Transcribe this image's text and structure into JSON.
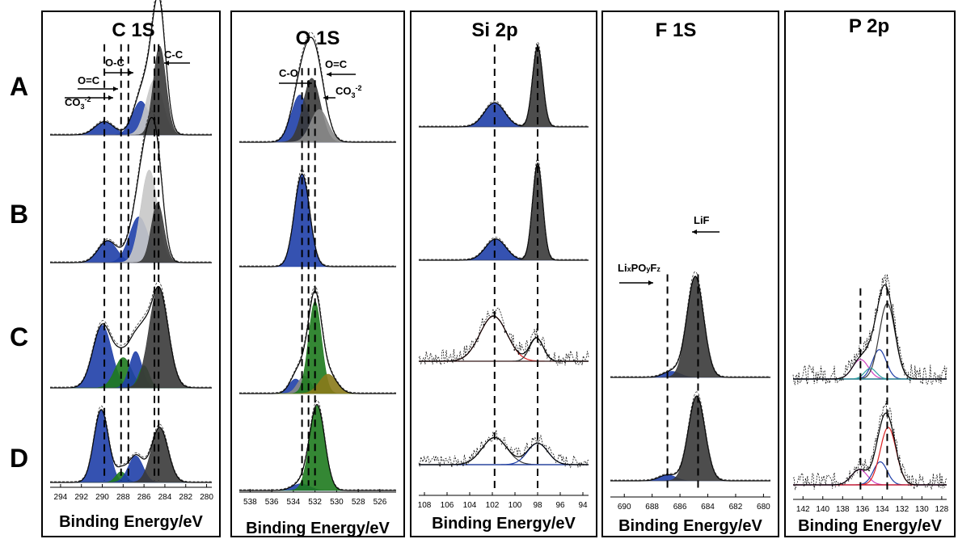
{
  "colors": {
    "blue": "#1f3fa8",
    "green": "#1e7a1e",
    "olive": "#8a7a1a",
    "gray_dark": "#3a3a3a",
    "gray_mid": "#8a8a8a",
    "gray_light": "#c8c8c8"
  },
  "row_labels": [
    "A",
    "B",
    "C",
    "D"
  ],
  "chart_data": [
    {
      "type": "line",
      "title": "C 1S",
      "xlabel": "Binding Energy/eV",
      "ylabel": "",
      "xlim": [
        295,
        279.5
      ],
      "x_ticks": [
        294,
        292,
        290,
        288,
        286,
        284,
        282,
        280
      ],
      "annotations": [
        "CO3-2",
        "O=C",
        "O-C",
        "C-C"
      ],
      "dashed_lines": [
        289.8,
        288.2,
        287.5,
        285.0,
        284.6
      ],
      "rows": {
        "A": {
          "peaks": [
            {
              "center": 289.8,
              "height": 0.15,
              "width": 0.9,
              "color": "blue"
            },
            {
              "center": 286.3,
              "height": 0.38,
              "width": 0.8,
              "color": "blue"
            },
            {
              "center": 285.0,
              "height": 0.62,
              "width": 0.8,
              "color": "gray_light"
            },
            {
              "center": 284.5,
              "height": 1.0,
              "width": 0.6,
              "color": "gray_dark"
            }
          ]
        },
        "B": {
          "peaks": [
            {
              "center": 289.5,
              "height": 0.2,
              "width": 0.9,
              "color": "blue"
            },
            {
              "center": 286.5,
              "height": 0.42,
              "width": 0.9,
              "color": "blue"
            },
            {
              "center": 285.5,
              "height": 0.85,
              "width": 0.8,
              "color": "gray_light"
            },
            {
              "center": 284.7,
              "height": 0.55,
              "width": 0.6,
              "color": "gray_dark"
            }
          ]
        },
        "C": {
          "peaks": [
            {
              "center": 290.0,
              "height": 0.62,
              "width": 0.9,
              "color": "blue"
            },
            {
              "center": 288.0,
              "height": 0.3,
              "width": 0.8,
              "color": "green"
            },
            {
              "center": 286.8,
              "height": 0.36,
              "width": 0.6,
              "color": "blue"
            },
            {
              "center": 286.0,
              "height": 0.22,
              "width": 0.5,
              "color": "green"
            },
            {
              "center": 284.6,
              "height": 1.0,
              "width": 0.9,
              "color": "gray_dark"
            }
          ]
        },
        "D": {
          "peaks": [
            {
              "center": 290.1,
              "height": 0.82,
              "width": 0.7,
              "color": "blue"
            },
            {
              "center": 288.2,
              "height": 0.12,
              "width": 0.5,
              "color": "green"
            },
            {
              "center": 286.8,
              "height": 0.3,
              "width": 0.7,
              "color": "blue"
            },
            {
              "center": 284.5,
              "height": 0.62,
              "width": 0.8,
              "color": "gray_dark"
            }
          ]
        }
      }
    },
    {
      "type": "line",
      "title": "O 1S",
      "xlabel": "Binding Energy/eV",
      "ylabel": "",
      "xlim": [
        539,
        524.5
      ],
      "x_ticks": [
        538,
        536,
        534,
        532,
        530,
        528,
        526
      ],
      "annotations": [
        "C-O",
        "O=C",
        "CO3-2"
      ],
      "dashed_lines": [
        533.2,
        532.6,
        532.0
      ],
      "rows": {
        "A": {
          "peaks": [
            {
              "center": 533.4,
              "height": 0.65,
              "width": 0.8,
              "color": "blue"
            },
            {
              "center": 532.3,
              "height": 0.88,
              "width": 0.8,
              "color": "gray_dark"
            },
            {
              "center": 531.6,
              "height": 0.45,
              "width": 0.8,
              "color": "gray_mid"
            }
          ]
        },
        "B": {
          "peaks": [
            {
              "center": 533.2,
              "height": 1.0,
              "width": 0.7,
              "color": "blue"
            }
          ]
        },
        "C": {
          "peaks": [
            {
              "center": 533.8,
              "height": 0.15,
              "width": 0.6,
              "color": "blue"
            },
            {
              "center": 533.0,
              "height": 0.18,
              "width": 0.6,
              "color": "gray_mid"
            },
            {
              "center": 532.0,
              "height": 0.95,
              "width": 0.6,
              "color": "green"
            },
            {
              "center": 530.8,
              "height": 0.2,
              "width": 0.8,
              "color": "olive"
            }
          ]
        },
        "D": {
          "peaks": [
            {
              "center": 533.3,
              "height": 0.08,
              "width": 0.8,
              "color": "blue"
            },
            {
              "center": 531.8,
              "height": 1.0,
              "width": 0.7,
              "color": "green"
            }
          ]
        }
      }
    },
    {
      "type": "line",
      "title": "Si 2p",
      "xlabel": "Binding Energy/eV",
      "ylabel": "",
      "xlim": [
        108.5,
        93.5
      ],
      "x_ticks": [
        108,
        106,
        104,
        102,
        100,
        98,
        96,
        94
      ],
      "annotations": [],
      "dashed_lines": [
        101.8,
        98.0
      ],
      "rows": {
        "A": {
          "peaks": [
            {
              "center": 101.8,
              "height": 0.3,
              "width": 0.9,
              "color": "blue"
            },
            {
              "center": 98.0,
              "height": 1.0,
              "width": 0.45,
              "color": "gray_dark"
            }
          ]
        },
        "B": {
          "peaks": [
            {
              "center": 101.7,
              "height": 0.22,
              "width": 0.9,
              "color": "blue"
            },
            {
              "center": 98.0,
              "height": 1.0,
              "width": 0.45,
              "color": "gray_dark"
            }
          ]
        },
        "C": {
          "noisy": true,
          "peaks": [
            {
              "center": 101.9,
              "height": 0.62,
              "width": 1.2,
              "color": "red"
            },
            {
              "center": 98.1,
              "height": 0.32,
              "width": 0.6,
              "color": "gray_dark"
            }
          ]
        },
        "D": {
          "noisy": true,
          "peaks": [
            {
              "center": 101.8,
              "height": 0.48,
              "width": 1.1,
              "color": "gray_dark"
            },
            {
              "center": 98.0,
              "height": 0.38,
              "width": 0.9,
              "color": "blue"
            }
          ]
        }
      }
    },
    {
      "type": "line",
      "title": "F 1S",
      "xlabel": "Binding Energy/eV",
      "ylabel": "",
      "xlim": [
        691,
        679.5
      ],
      "x_ticks": [
        690,
        688,
        686,
        684,
        682,
        680
      ],
      "annotations": [
        "LiF",
        "LixPOyFz"
      ],
      "dashed_lines": [
        686.9,
        684.7
      ],
      "rows": {
        "A": {
          "peaks": []
        },
        "B": {
          "peaks": []
        },
        "C": {
          "peaks": [
            {
              "center": 686.6,
              "height": 0.06,
              "width": 0.6,
              "color": "blue"
            },
            {
              "center": 684.9,
              "height": 1.0,
              "width": 0.6,
              "color": "gray_dark"
            }
          ]
        },
        "D": {
          "peaks": [
            {
              "center": 686.9,
              "height": 0.07,
              "width": 0.6,
              "color": "blue"
            },
            {
              "center": 684.8,
              "height": 1.0,
              "width": 0.6,
              "color": "gray_dark"
            }
          ]
        }
      }
    },
    {
      "type": "line",
      "title": "P 2p",
      "xlabel": "Binding Energy/eV",
      "ylabel": "",
      "xlim": [
        143,
        127.5
      ],
      "x_ticks": [
        142,
        140,
        138,
        136,
        134,
        132,
        130,
        128
      ],
      "annotations": [],
      "dashed_lines": [
        136.2,
        133.5
      ],
      "rows": {
        "A": {
          "peaks": []
        },
        "B": {
          "peaks": []
        },
        "C": {
          "noisy": true,
          "peaks": [
            {
              "center": 136.2,
              "height": 0.22,
              "width": 0.8,
              "color": "magenta"
            },
            {
              "center": 134.3,
              "height": 0.33,
              "width": 0.7,
              "color": "blue"
            },
            {
              "center": 133.5,
              "height": 0.85,
              "width": 0.8,
              "color": "gray_dark"
            },
            {
              "center": 135.2,
              "height": 0.12,
              "width": 0.6,
              "color": "teal"
            }
          ]
        },
        "D": {
          "noisy": true,
          "peaks": [
            {
              "center": 136.3,
              "height": 0.2,
              "width": 0.8,
              "color": "magenta"
            },
            {
              "center": 134.2,
              "height": 0.3,
              "width": 0.7,
              "color": "blue"
            },
            {
              "center": 133.4,
              "height": 0.75,
              "width": 0.8,
              "color": "red"
            }
          ]
        }
      }
    }
  ]
}
